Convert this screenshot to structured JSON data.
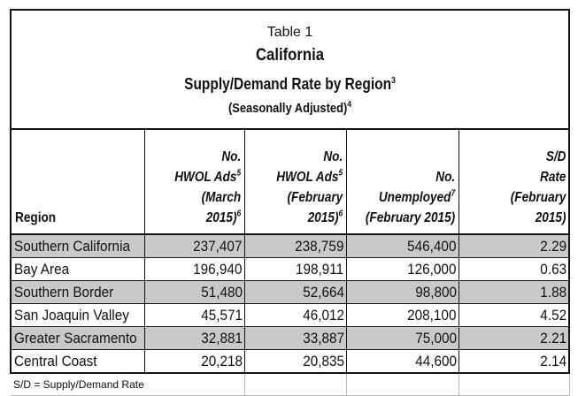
{
  "title": {
    "table_label": "Table 1",
    "state": "California",
    "subtitle": "Supply/Demand Rate by Region",
    "subtitle_note": "3",
    "adjustment": "(Seasonally Adjusted)",
    "adjustment_note": "4"
  },
  "headers": {
    "region": "Region",
    "ads_march_line1": "No.",
    "ads_march_line2": "HWOL Ads",
    "ads_march_note": "5",
    "ads_march_line3": "(March",
    "ads_march_line4": "2015)",
    "ads_march_note2": "6",
    "ads_feb_line1": "No.",
    "ads_feb_line2": "HWOL Ads",
    "ads_feb_note": "5",
    "ads_feb_line3": "(February",
    "ads_feb_line4": "2015)",
    "ads_feb_note2": "6",
    "unemp_line1": "No.",
    "unemp_line2": "Unemployed",
    "unemp_note": "7",
    "unemp_line3": "(February 2015)",
    "rate_line1": "S/D",
    "rate_line2": "Rate",
    "rate_line3": "(February 2015)"
  },
  "rows": [
    {
      "region": "Southern California",
      "ads_march": "237,407",
      "ads_feb": "238,759",
      "unemployed": "546,400",
      "rate": "2.29"
    },
    {
      "region": "Bay Area",
      "ads_march": "196,940",
      "ads_feb": "198,911",
      "unemployed": "126,000",
      "rate": "0.63"
    },
    {
      "region": "Southern Border",
      "ads_march": "51,480",
      "ads_feb": "52,664",
      "unemployed": "98,800",
      "rate": "1.88"
    },
    {
      "region": "San Joaquin Valley",
      "ads_march": "45,571",
      "ads_feb": "46,012",
      "unemployed": "208,100",
      "rate": "4.52"
    },
    {
      "region": "Greater Sacramento",
      "ads_march": "32,881",
      "ads_feb": "33,887",
      "unemployed": "75,000",
      "rate": "2.21"
    },
    {
      "region": "Central Coast",
      "ads_march": "20,218",
      "ads_feb": "20,835",
      "unemployed": "44,600",
      "rate": "2.14"
    }
  ],
  "footnote": "S/D = Supply/Demand Rate",
  "colors": {
    "shade": "#c9c9c9",
    "border": "#111111"
  }
}
